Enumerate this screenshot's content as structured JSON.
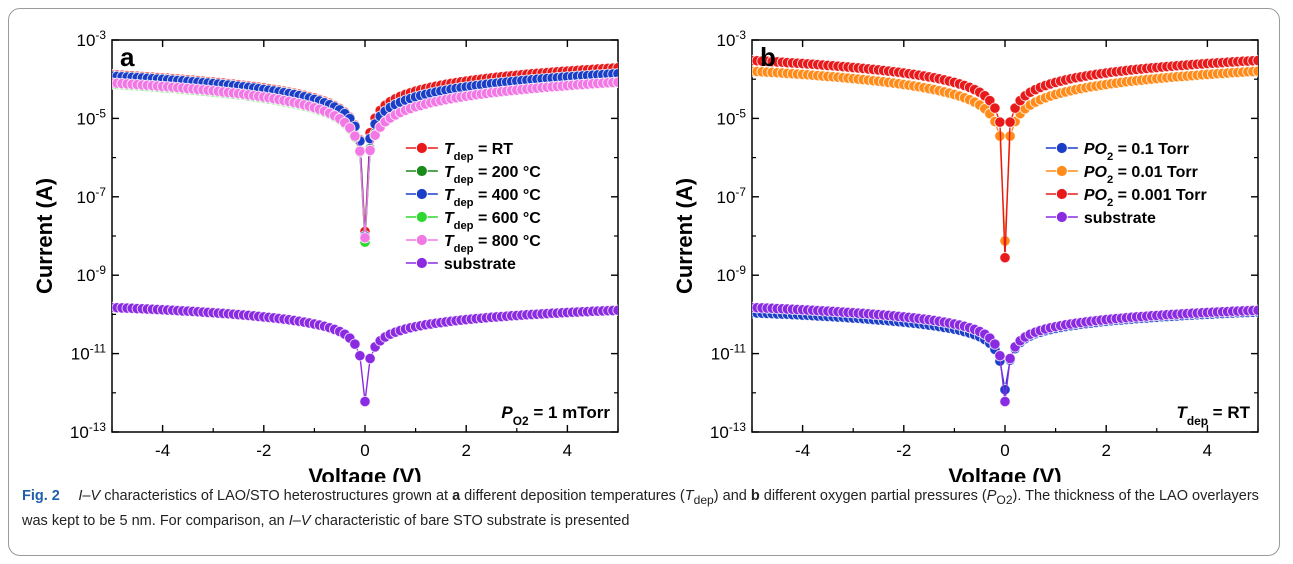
{
  "chart_data": [
    {
      "type": "scatter",
      "panel_label": "a",
      "xlabel": "Voltage (V)",
      "ylabel": "Current (A)",
      "xlim": [
        -5,
        5
      ],
      "ylim_exp": [
        -13,
        -3
      ],
      "log_y": true,
      "x_ticks": [
        -4,
        -2,
        0,
        2,
        4
      ],
      "y_ticks_exp": [
        -3,
        -5,
        -7,
        -9,
        -11,
        -13
      ],
      "legend_position": "center-right",
      "annotation": {
        "symbol": "P",
        "sub": "O2",
        "value": " = 1 mTorr"
      },
      "series": [
        {
          "legend": {
            "symbol": "T",
            "sub": "dep",
            "value": " = RT"
          },
          "color": "#e8191a",
          "a": 0.00013,
          "b": 6.2e-05,
          "p": 0.85,
          "ratio": 1.5,
          "v0": 1.3e-08
        },
        {
          "legend": {
            "symbol": "T",
            "sub": "dep",
            "value": " = 200 °C"
          },
          "color": "#1a8a1a",
          "a": 8.5e-05,
          "b": 4.5e-05,
          "p": 0.9,
          "ratio": 1.1,
          "v0": 8e-09
        },
        {
          "legend": {
            "symbol": "T",
            "sub": "dep",
            "value": " = 400 °C"
          },
          "color": "#1a3ec8",
          "a": 0.00012,
          "b": 5.2e-05,
          "p": 0.85,
          "ratio": 1.15,
          "v0": 1e-08
        },
        {
          "legend": {
            "symbol": "T",
            "sub": "dep",
            "value": " = 600 °C"
          },
          "color": "#2fd82f",
          "a": 7.5e-05,
          "b": 4e-05,
          "p": 0.9,
          "ratio": 1.1,
          "v0": 7e-09
        },
        {
          "legend": {
            "symbol": "T",
            "sub": "dep",
            "value": " = 800 °C"
          },
          "color": "#f278e6",
          "a": 8e-05,
          "b": 4.2e-05,
          "p": 0.9,
          "ratio": 1.05,
          "v0": 9e-09
        },
        {
          "legend": {
            "symbol": "",
            "sub": "",
            "value": "substrate"
          },
          "color": "#8a2be2",
          "a": 1.5e-10,
          "b": 3e-11,
          "p": 0.6,
          "ratio": 0.85,
          "v0": 6e-13
        }
      ]
    },
    {
      "type": "scatter",
      "panel_label": "b",
      "xlabel": "Voltage (V)",
      "ylabel": "Current (A)",
      "xlim": [
        -5,
        5
      ],
      "ylim_exp": [
        -13,
        -3
      ],
      "log_y": true,
      "x_ticks": [
        -4,
        -2,
        0,
        2,
        4
      ],
      "y_ticks_exp": [
        -3,
        -5,
        -7,
        -9,
        -11,
        -13
      ],
      "legend_position": "center-right",
      "annotation": {
        "symbol": "T",
        "sub": "dep",
        "value": " = RT"
      },
      "series": [
        {
          "legend": {
            "symbol": "PO",
            "sub": "2",
            "value": " = 0.1 Torr"
          },
          "color": "#1a3ec8",
          "a": 1.1e-10,
          "b": 2.2e-11,
          "p": 0.6,
          "ratio": 1.05,
          "v0": 1.2e-12
        },
        {
          "legend": {
            "symbol": "PO",
            "sub": "2",
            "value": " = 0.01 Torr"
          },
          "color": "#ff8c1a",
          "a": 0.00016,
          "b": 5e-05,
          "p": 0.85,
          "ratio": 1.0,
          "v0": 7.5e-09
        },
        {
          "legend": {
            "symbol": "PO",
            "sub": "2",
            "value": " = 0.001 Torr"
          },
          "color": "#e8191a",
          "a": 0.0003,
          "b": 9e-05,
          "p": 0.8,
          "ratio": 1.0,
          "v0": 2.8e-09
        },
        {
          "legend": {
            "symbol": "",
            "sub": "",
            "value": "substrate"
          },
          "color": "#8a2be2",
          "a": 1.5e-10,
          "b": 3e-11,
          "p": 0.6,
          "ratio": 0.85,
          "v0": 6e-13
        }
      ]
    }
  ],
  "caption": {
    "fig_label": "Fig. 2",
    "segments": [
      {
        "t": "I–V",
        "style": "i"
      },
      {
        "t": " characteristics of LAO/STO heterostructures grown at ",
        "style": ""
      },
      {
        "t": "a",
        "style": "b"
      },
      {
        "t": " different deposition temperatures (",
        "style": ""
      },
      {
        "t": "T",
        "style": "i"
      },
      {
        "t": "dep",
        "style": "sub"
      },
      {
        "t": ") and ",
        "style": ""
      },
      {
        "t": "b",
        "style": "b"
      },
      {
        "t": " different oxygen partial pressures (",
        "style": ""
      },
      {
        "t": "P",
        "style": "i"
      },
      {
        "t": "O2",
        "style": "sub"
      },
      {
        "t": "). The thickness of the LAO overlayers was kept to be 5 nm. For comparison, an ",
        "style": ""
      },
      {
        "t": "I–V",
        "style": "i"
      },
      {
        "t": " characteristic of bare STO substrate is presented",
        "style": ""
      }
    ]
  }
}
